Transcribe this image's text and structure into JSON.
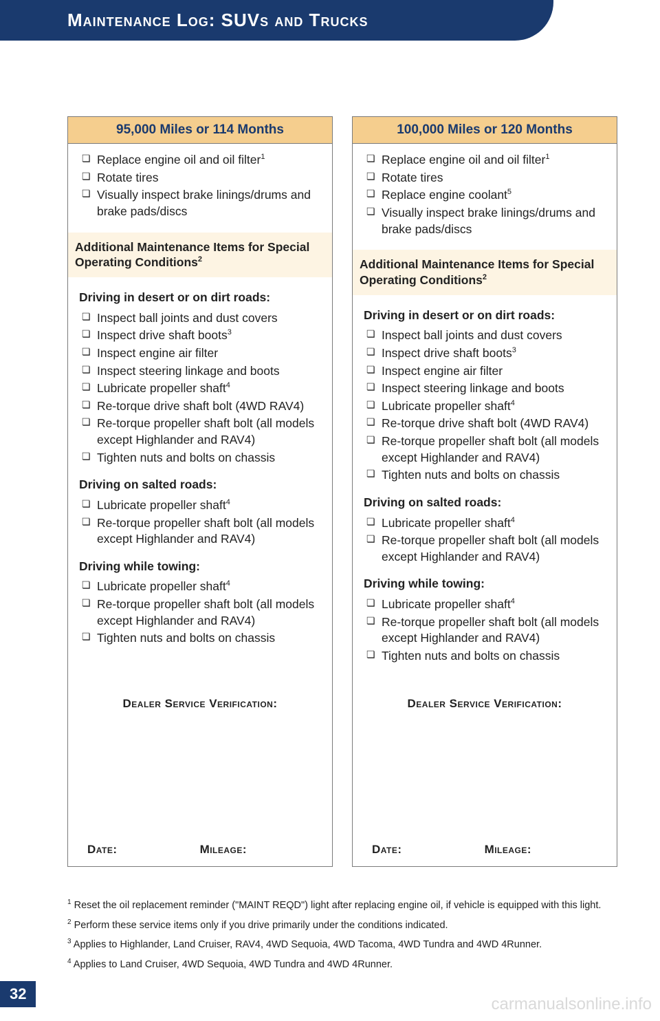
{
  "header": {
    "title": "Maintenance Log: SUVs and Trucks"
  },
  "cards": [
    {
      "title": "95,000 Miles or 114 Months",
      "main_items": [
        {
          "text": "Replace engine oil and oil filter",
          "sup": "1"
        },
        {
          "text": "Rotate tires"
        },
        {
          "text": "Visually inspect brake linings/drums and brake pads/discs"
        }
      ],
      "sub_header": {
        "text": "Additional Maintenance Items for Special Operating Conditions",
        "sup": "2"
      },
      "conditions": [
        {
          "title": "Driving in desert or on dirt roads:",
          "items": [
            {
              "text": "Inspect ball joints and dust covers"
            },
            {
              "text": "Inspect drive shaft boots",
              "sup": "3"
            },
            {
              "text": "Inspect engine air filter"
            },
            {
              "text": "Inspect steering linkage and boots"
            },
            {
              "text": "Lubricate propeller shaft",
              "sup": "4"
            },
            {
              "text": "Re-torque drive shaft bolt (4WD RAV4)"
            },
            {
              "text": "Re-torque propeller shaft bolt (all models except Highlander and RAV4)"
            },
            {
              "text": "Tighten nuts and bolts on chassis"
            }
          ]
        },
        {
          "title": "Driving on salted roads:",
          "items": [
            {
              "text": "Lubricate propeller shaft",
              "sup": "4"
            },
            {
              "text": "Re-torque propeller shaft bolt (all models except Highlander and RAV4)"
            }
          ]
        },
        {
          "title": "Driving while towing:",
          "items": [
            {
              "text": "Lubricate propeller shaft",
              "sup": "4"
            },
            {
              "text": "Re-torque propeller shaft bolt (all models except Highlander and RAV4)"
            },
            {
              "text": "Tighten nuts and bolts on chassis"
            }
          ]
        }
      ],
      "verification_label": "Dealer Service Verification:",
      "date_label": "Date:",
      "mileage_label": "Mileage:"
    },
    {
      "title": "100,000 Miles or 120 Months",
      "main_items": [
        {
          "text": "Replace engine oil and oil filter",
          "sup": "1"
        },
        {
          "text": "Rotate tires"
        },
        {
          "text": "Replace engine coolant",
          "sup": "5"
        },
        {
          "text": "Visually inspect brake linings/drums and brake pads/discs"
        }
      ],
      "sub_header": {
        "text": "Additional Maintenance Items for Special Operating Conditions",
        "sup": "2"
      },
      "conditions": [
        {
          "title": "Driving in desert or on dirt roads:",
          "items": [
            {
              "text": "Inspect ball joints and dust covers"
            },
            {
              "text": "Inspect drive shaft boots",
              "sup": "3"
            },
            {
              "text": "Inspect engine air filter"
            },
            {
              "text": "Inspect steering linkage and boots"
            },
            {
              "text": "Lubricate propeller shaft",
              "sup": "4"
            },
            {
              "text": "Re-torque drive shaft bolt (4WD RAV4)"
            },
            {
              "text": "Re-torque propeller shaft bolt (all models except Highlander and RAV4)"
            },
            {
              "text": "Tighten nuts and bolts on chassis"
            }
          ]
        },
        {
          "title": "Driving on salted roads:",
          "items": [
            {
              "text": "Lubricate propeller shaft",
              "sup": "4"
            },
            {
              "text": "Re-torque propeller shaft bolt (all models except Highlander and RAV4)"
            }
          ]
        },
        {
          "title": "Driving while towing:",
          "items": [
            {
              "text": "Lubricate propeller shaft",
              "sup": "4"
            },
            {
              "text": "Re-torque propeller shaft bolt (all models except Highlander and RAV4)"
            },
            {
              "text": "Tighten nuts and bolts on chassis"
            }
          ]
        }
      ],
      "verification_label": "Dealer Service Verification:",
      "date_label": "Date:",
      "mileage_label": "Mileage:"
    }
  ],
  "footnotes": [
    {
      "num": "1",
      "text": "Reset the oil replacement reminder (\"MAINT REQD\") light after replacing engine oil, if vehicle is equipped with this light."
    },
    {
      "num": "2",
      "text": "Perform these service items only if you drive primarily under the conditions indicated."
    },
    {
      "num": "3",
      "text": "Applies to Highlander, Land Cruiser, RAV4, 4WD Sequoia, 4WD Tacoma, 4WD Tundra and 4WD 4Runner."
    },
    {
      "num": "4",
      "text": "Applies to Land Cruiser, 4WD Sequoia, 4WD Tundra and 4WD 4Runner."
    }
  ],
  "page_number": "32",
  "watermark": "carmanualsonline.info",
  "colors": {
    "banner_bg": "#1a3a6e",
    "card_title_bg": "#f5ce8e",
    "card_title_color": "#1a3a6e",
    "sub_header_bg": "#fdf4e3",
    "border": "#7a7a7a",
    "watermark": "#d9d9d9"
  }
}
